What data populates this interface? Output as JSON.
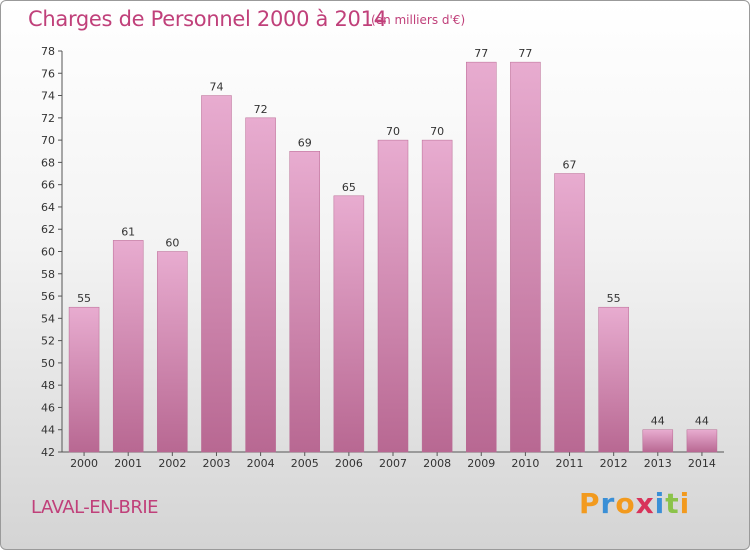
{
  "title": "Charges de Personnel 2000 à 2014",
  "subtitle": "(en milliers d'€)",
  "commune": "LAVAL-EN-BRIE",
  "logo": {
    "letters": [
      "P",
      "r",
      "o",
      "x",
      "i",
      "t",
      "i"
    ],
    "colors": [
      "#f29a1e",
      "#3a8fd6",
      "#f29a1e",
      "#d8335a",
      "#3a8fd6",
      "#8bc34a",
      "#f29a1e"
    ]
  },
  "colors": {
    "bar": "#d583ad",
    "bar_light": "#e8acd0",
    "bar_dark": "#b86892",
    "text_accent": "#c0407a"
  },
  "chart_data": {
    "type": "bar",
    "categories": [
      "2000",
      "2001",
      "2002",
      "2003",
      "2004",
      "2005",
      "2006",
      "2007",
      "2008",
      "2009",
      "2010",
      "2011",
      "2012",
      "2013",
      "2014"
    ],
    "values": [
      55,
      61,
      60,
      74,
      72,
      69,
      65,
      70,
      70,
      77,
      77,
      67,
      55,
      44,
      44
    ],
    "data_labels": [
      "55",
      "61",
      "60",
      "74",
      "72",
      "69",
      "65",
      "70",
      "70",
      "77",
      "77",
      "67",
      "55",
      "44",
      "44"
    ],
    "ylim": [
      42,
      78
    ],
    "yticks": [
      "42",
      "44",
      "46",
      "48",
      "50",
      "52",
      "54",
      "56",
      "58",
      "60",
      "62",
      "64",
      "66",
      "68",
      "70",
      "72",
      "74",
      "76",
      "78"
    ],
    "grid": false,
    "legend": "none"
  }
}
